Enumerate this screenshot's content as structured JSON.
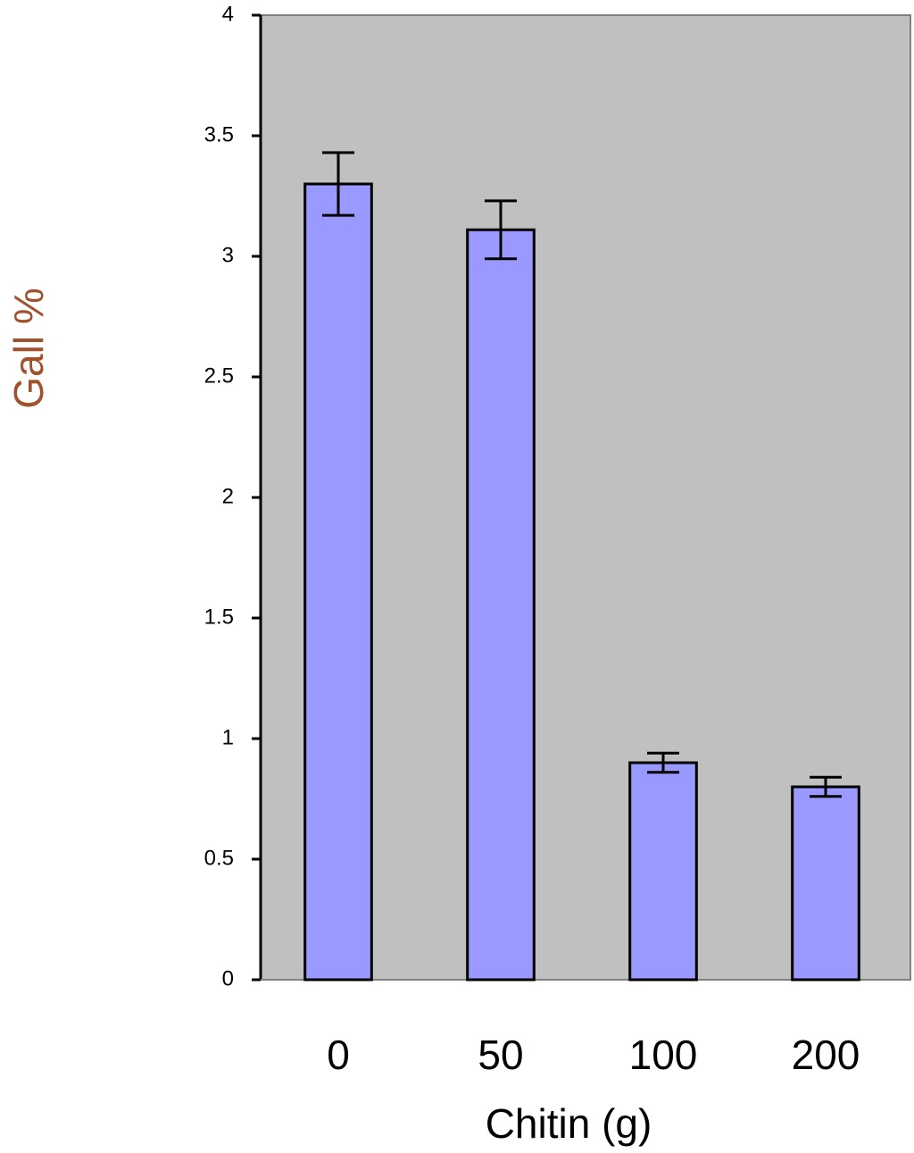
{
  "chart_data": {
    "type": "bar",
    "x_label": "Chitin (g)",
    "y_label": "Gall %",
    "categories": [
      "0",
      "50",
      "100",
      "200"
    ],
    "values": [
      3.3,
      3.11,
      0.9,
      0.8
    ],
    "errors": [
      0.13,
      0.12,
      0.04,
      0.04
    ],
    "color": "#9999ff",
    "background": "#c0c0c0",
    "ylim": [
      0,
      4
    ],
    "yticks": [
      0,
      0.5,
      1,
      1.5,
      2,
      2.5,
      3,
      3.5,
      4
    ],
    "grid": false
  }
}
